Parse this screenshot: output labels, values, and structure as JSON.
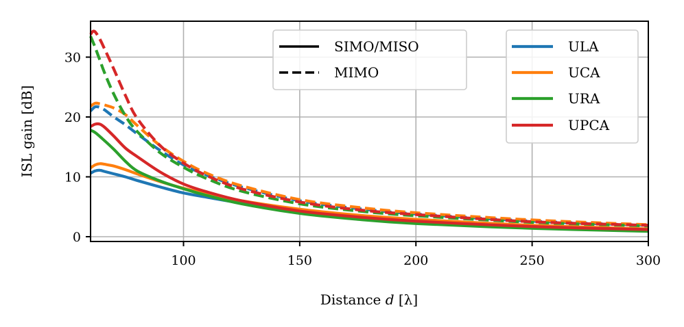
{
  "chart_data": {
    "type": "line",
    "xlabel": "Distance",
    "xlabel_var": "d",
    "xlabel_unit": "[λ]",
    "ylabel": "ISL gain [dB]",
    "xlim": [
      60,
      300
    ],
    "ylim": [
      -0.8,
      36
    ],
    "xticks": [
      100,
      150,
      200,
      250,
      300
    ],
    "yticks": [
      0,
      10,
      20,
      30
    ],
    "grid": true,
    "style_legend": {
      "position": "top-center",
      "entries": [
        {
          "label": "SIMO/MISO",
          "dash": "solid"
        },
        {
          "label": "MIMO",
          "dash": "dashed"
        }
      ]
    },
    "array_legend": {
      "position": "top-right",
      "entries": [
        {
          "label": "ULA",
          "color": "#1f77b4"
        },
        {
          "label": "UCA",
          "color": "#ff7f0e"
        },
        {
          "label": "URA",
          "color": "#2ca02c"
        },
        {
          "label": "UPCA",
          "color": "#d62728"
        }
      ]
    },
    "series": [
      {
        "name": "ULA SIMO/MISO",
        "array": "ULA",
        "mode": "solid",
        "color": "#1f77b4",
        "x": [
          60,
          62,
          64,
          66,
          70,
          75,
          80,
          90,
          100,
          110,
          125,
          150,
          175,
          200,
          250,
          300
        ],
        "y": [
          10.6,
          11.0,
          11.1,
          10.9,
          10.5,
          10.0,
          9.4,
          8.3,
          7.3,
          6.6,
          5.6,
          4.3,
          3.3,
          2.6,
          1.7,
          1.2
        ]
      },
      {
        "name": "UCA SIMO/MISO",
        "array": "UCA",
        "mode": "solid",
        "color": "#ff7f0e",
        "x": [
          60,
          62,
          64,
          66,
          70,
          75,
          80,
          90,
          100,
          110,
          125,
          150,
          175,
          200,
          250,
          300
        ],
        "y": [
          11.5,
          12.0,
          12.2,
          12.1,
          11.8,
          11.2,
          10.5,
          9.2,
          8.1,
          7.2,
          6.0,
          4.6,
          3.6,
          2.9,
          1.9,
          1.3
        ]
      },
      {
        "name": "URA SIMO/MISO",
        "array": "URA",
        "mode": "solid",
        "color": "#2ca02c",
        "x": [
          60,
          62,
          65,
          70,
          75,
          80,
          90,
          100,
          110,
          125,
          150,
          175,
          200,
          250,
          300
        ],
        "y": [
          17.8,
          17.4,
          16.4,
          14.6,
          12.6,
          11.0,
          9.3,
          8.0,
          6.9,
          5.5,
          3.9,
          2.9,
          2.2,
          1.4,
          0.9
        ]
      },
      {
        "name": "UPCA SIMO/MISO",
        "array": "UPCA",
        "mode": "solid",
        "color": "#d62728",
        "x": [
          60,
          62,
          64,
          66,
          70,
          75,
          80,
          90,
          100,
          110,
          125,
          150,
          175,
          200,
          250,
          300
        ],
        "y": [
          18.4,
          18.8,
          18.8,
          18.3,
          16.8,
          14.8,
          13.4,
          10.8,
          8.8,
          7.5,
          6.0,
          4.3,
          3.3,
          2.6,
          1.7,
          1.2
        ]
      },
      {
        "name": "ULA MIMO",
        "array": "ULA",
        "mode": "dashed",
        "color": "#1f77b4",
        "x": [
          60,
          62,
          64,
          66,
          70,
          75,
          80,
          90,
          100,
          110,
          125,
          150,
          175,
          200,
          250,
          300
        ],
        "y": [
          21.0,
          21.7,
          21.6,
          21.2,
          20.0,
          18.7,
          17.2,
          14.4,
          12.0,
          10.3,
          8.3,
          6.0,
          4.7,
          3.8,
          2.6,
          1.9
        ]
      },
      {
        "name": "UCA MIMO",
        "array": "UCA",
        "mode": "dashed",
        "color": "#ff7f0e",
        "x": [
          60,
          62,
          64,
          66,
          70,
          75,
          80,
          90,
          100,
          110,
          125,
          150,
          175,
          200,
          250,
          300
        ],
        "y": [
          21.8,
          22.3,
          22.2,
          22.0,
          21.5,
          20.4,
          18.6,
          15.2,
          12.6,
          10.6,
          8.5,
          6.2,
          4.9,
          4.0,
          2.8,
          2.0
        ]
      },
      {
        "name": "URA MIMO",
        "array": "URA",
        "mode": "dashed",
        "color": "#2ca02c",
        "x": [
          60,
          62,
          64,
          66,
          70,
          75,
          80,
          90,
          100,
          110,
          125,
          150,
          175,
          200,
          250,
          300
        ],
        "y": [
          33.5,
          31.6,
          29.5,
          27.4,
          23.8,
          20.2,
          17.6,
          14.0,
          11.6,
          9.7,
          7.6,
          5.5,
          4.3,
          3.5,
          2.4,
          1.8
        ]
      },
      {
        "name": "UPCA MIMO",
        "array": "UPCA",
        "mode": "dashed",
        "color": "#d62728",
        "x": [
          60,
          61,
          62,
          64,
          66,
          70,
          75,
          80,
          90,
          100,
          110,
          125,
          150,
          175,
          200,
          250,
          300
        ],
        "y": [
          33.8,
          34.3,
          34.2,
          33.0,
          31.4,
          28.0,
          23.6,
          19.8,
          15.2,
          12.3,
          10.2,
          8.0,
          5.8,
          4.5,
          3.7,
          2.5,
          1.9
        ]
      }
    ]
  }
}
